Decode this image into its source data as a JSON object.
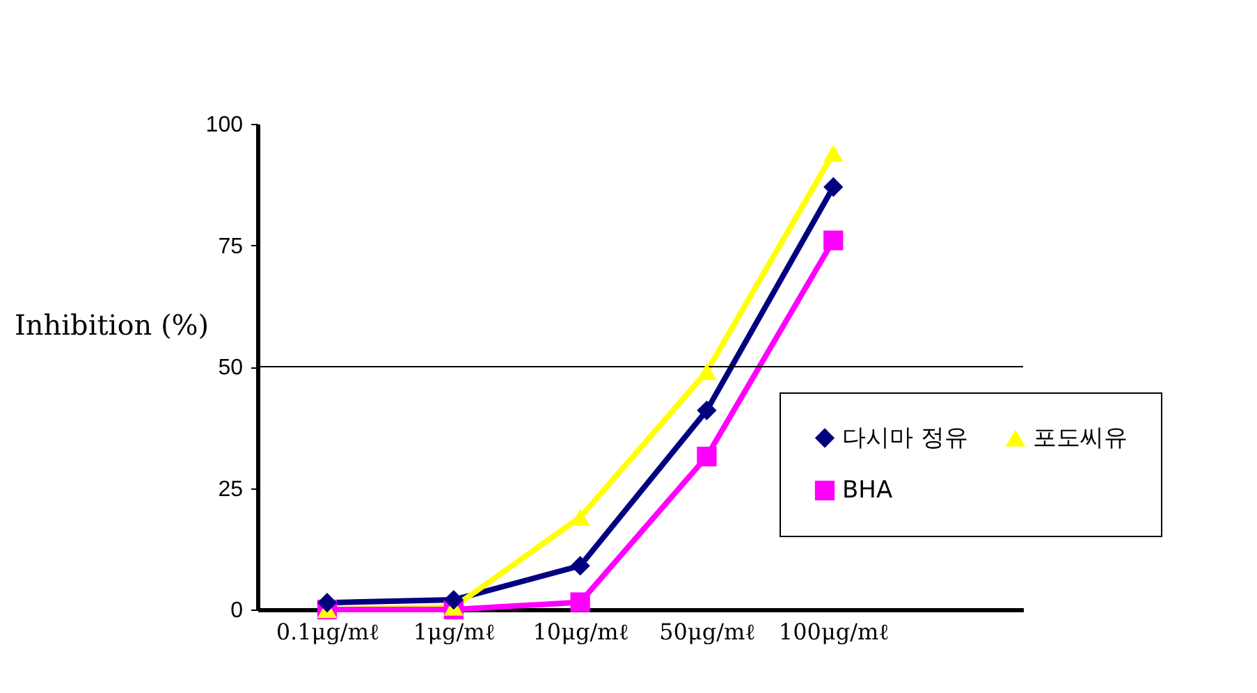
{
  "chart_data": {
    "type": "line",
    "ylabel": "Inhibition (%)",
    "categories": [
      "0.1μg/mℓ",
      "1μg/mℓ",
      "10μg/mℓ",
      "50μg/mℓ",
      "100μg/mℓ"
    ],
    "series": [
      {
        "name": "다시마 정유",
        "color": "#000080",
        "marker": "diamond",
        "values": [
          1.4,
          2,
          9,
          41,
          87
        ]
      },
      {
        "name": "포도씨유",
        "color": "#ffff00",
        "marker": "triangle",
        "values": [
          0,
          0.5,
          19,
          49,
          94
        ]
      },
      {
        "name": "BHA",
        "color": "#ff00ff",
        "marker": "square",
        "values": [
          0,
          0,
          1.5,
          31.5,
          76
        ]
      }
    ],
    "ylim": [
      0,
      100
    ],
    "yticks": [
      0,
      25,
      50,
      75,
      100
    ],
    "grid": false,
    "legend": "right",
    "ref_lines": [
      {
        "axis": "y",
        "value": 50,
        "color": "#000000"
      }
    ]
  }
}
